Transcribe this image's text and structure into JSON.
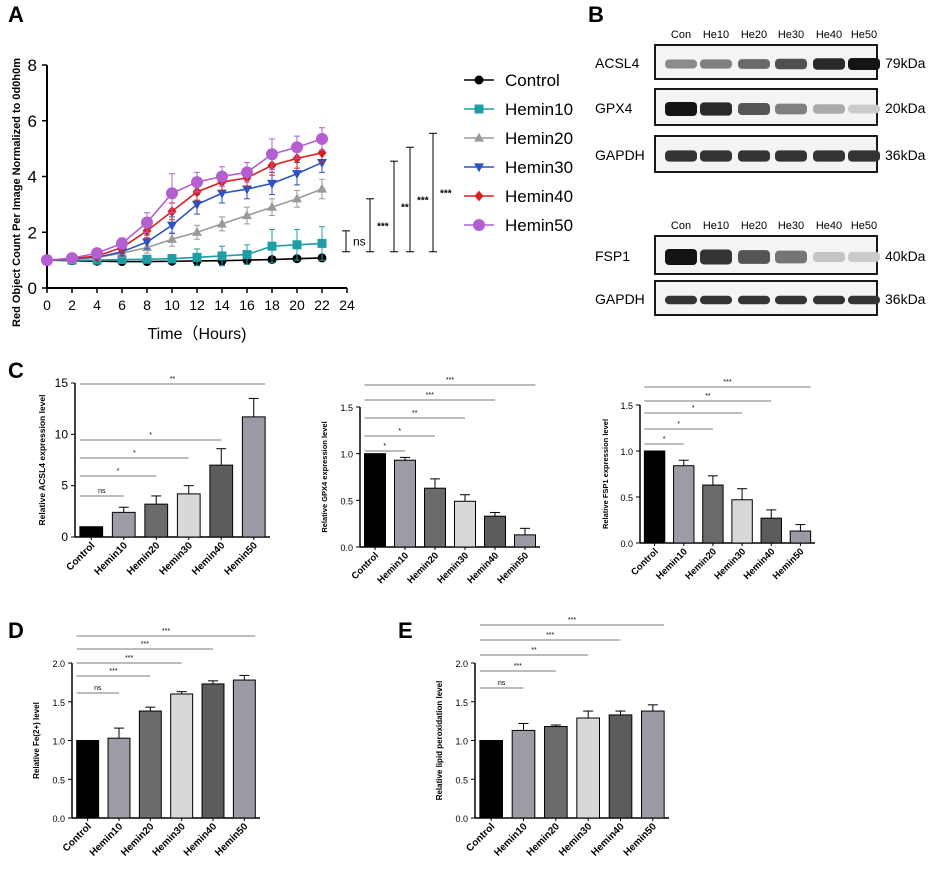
{
  "colors": {
    "control": "#000000",
    "hemin10": "#1f9da4",
    "hemin20": "#9a9a9a",
    "hemin30": "#2a52c3",
    "hemin40": "#d8201f",
    "hemin50": "#b35fcf",
    "bar_shades": [
      "#000000",
      "#9c9ca6",
      "#6b6b6b",
      "#d8d8d8",
      "#5c5c5c",
      "#9a9aa6"
    ]
  },
  "panels": {
    "A": {
      "letter": "A"
    },
    "B": {
      "letter": "B"
    },
    "C": {
      "letter": "C"
    },
    "D": {
      "letter": "D"
    },
    "E": {
      "letter": "E"
    }
  },
  "chart_data": [
    {
      "id": "A",
      "type": "line",
      "title": "",
      "xlabel": "Time（Hours)",
      "ylabel": "Red Object Count Per Image Normalized to 0d0h0m",
      "xlim": [
        0,
        24
      ],
      "ylim": [
        0,
        8
      ],
      "xticks": [
        "0",
        "2",
        "4",
        "6",
        "8",
        "10",
        "12",
        "14",
        "16",
        "18",
        "20",
        "22",
        "24"
      ],
      "yticks": [
        "0",
        "2",
        "4",
        "6",
        "8"
      ],
      "x": [
        0,
        2,
        4,
        6,
        8,
        10,
        12,
        14,
        16,
        18,
        20,
        22
      ],
      "series": [
        {
          "name": "Control",
          "marker": "circle",
          "color": "#000000",
          "values": [
            1.0,
            0.98,
            0.96,
            0.95,
            0.95,
            0.96,
            0.97,
            0.98,
            1.0,
            1.02,
            1.05,
            1.08
          ],
          "errors": [
            0.05,
            0.08,
            0.08,
            0.1,
            0.1,
            0.1,
            0.15,
            0.15,
            0.15,
            0.1,
            0.1,
            0.1
          ]
        },
        {
          "name": "Hemin10",
          "marker": "square",
          "color": "#1f9da4",
          "values": [
            1.0,
            1.0,
            1.0,
            1.02,
            1.03,
            1.05,
            1.1,
            1.15,
            1.2,
            1.5,
            1.55,
            1.6
          ],
          "errors": [
            0.05,
            0.08,
            0.1,
            0.1,
            0.1,
            0.15,
            0.3,
            0.35,
            0.35,
            0.6,
            0.55,
            0.6
          ]
        },
        {
          "name": "Hemin20",
          "marker": "triangle-up",
          "color": "#9a9a9a",
          "values": [
            1.0,
            1.05,
            1.1,
            1.25,
            1.45,
            1.75,
            2.0,
            2.3,
            2.6,
            2.9,
            3.2,
            3.55
          ],
          "errors": [
            0.05,
            0.1,
            0.1,
            0.15,
            0.2,
            0.25,
            0.25,
            0.25,
            0.3,
            0.3,
            0.3,
            0.35
          ]
        },
        {
          "name": "Hemin30",
          "marker": "triangle-down",
          "color": "#2a52c3",
          "values": [
            1.0,
            1.05,
            1.1,
            1.3,
            1.65,
            2.25,
            3.0,
            3.4,
            3.55,
            3.75,
            4.1,
            4.5
          ],
          "errors": [
            0.05,
            0.1,
            0.1,
            0.15,
            0.25,
            0.3,
            0.35,
            0.35,
            0.35,
            0.4,
            0.4,
            0.35
          ]
        },
        {
          "name": "Hemin40",
          "marker": "diamond",
          "color": "#d8201f",
          "values": [
            1.0,
            1.05,
            1.15,
            1.45,
            2.05,
            2.75,
            3.45,
            3.8,
            3.95,
            4.4,
            4.65,
            4.85
          ],
          "errors": [
            0.05,
            0.1,
            0.1,
            0.2,
            0.25,
            0.3,
            0.3,
            0.3,
            0.3,
            0.35,
            0.35,
            0.35
          ]
        },
        {
          "name": "Hemin50",
          "marker": "circle",
          "color": "#b35fcf",
          "values": [
            1.0,
            1.07,
            1.25,
            1.6,
            2.35,
            3.4,
            3.8,
            4.0,
            4.15,
            4.8,
            5.05,
            5.35
          ],
          "errors": [
            0.05,
            0.1,
            0.12,
            0.2,
            0.35,
            0.7,
            0.35,
            0.35,
            0.35,
            0.55,
            0.4,
            0.4
          ]
        }
      ],
      "significance": [
        {
          "label": "ns",
          "from": 1.3,
          "to": 2.05
        },
        {
          "label": "***",
          "from": 1.3,
          "to": 3.2
        },
        {
          "label": "**",
          "from": 1.3,
          "to": 4.55
        },
        {
          "label": "***",
          "from": 1.3,
          "to": 5.05
        },
        {
          "label": "***",
          "from": 1.3,
          "to": 5.55
        }
      ]
    },
    {
      "id": "B",
      "type": "western-blot",
      "blot1": {
        "lanes": [
          "Con",
          "He10",
          "He20",
          "He30",
          "He40",
          "He50"
        ],
        "rows": [
          {
            "protein": "ACSL4",
            "size": "79kDa",
            "intensity": [
              0.45,
              0.5,
              0.6,
              0.72,
              0.9,
              1.0
            ]
          },
          {
            "protein": "GPX4",
            "size": "20kDa",
            "intensity": [
              1.0,
              0.9,
              0.7,
              0.5,
              0.3,
              0.15
            ]
          },
          {
            "protein": "GAPDH",
            "size": "36kDa",
            "intensity": [
              0.85,
              0.85,
              0.85,
              0.85,
              0.85,
              0.85
            ]
          }
        ]
      },
      "blot2": {
        "lanes": [
          "Con",
          "He10",
          "He20",
          "He30",
          "He40",
          "He50"
        ],
        "rows": [
          {
            "protein": "FSP1",
            "size": "40kDa",
            "intensity": [
              1.0,
              0.85,
              0.7,
              0.55,
              0.18,
              0.15
            ]
          },
          {
            "protein": "GAPDH",
            "size": "36kDa",
            "intensity": [
              0.85,
              0.85,
              0.85,
              0.85,
              0.85,
              0.85
            ]
          }
        ]
      }
    },
    {
      "id": "C1",
      "type": "bar",
      "categories": [
        "Control",
        "Hemin10",
        "Hemin20",
        "Hemin30",
        "Hemin40",
        "Hemin50"
      ],
      "values": [
        1.0,
        2.4,
        3.2,
        4.2,
        7.0,
        11.7
      ],
      "errors": [
        0.0,
        0.5,
        0.8,
        0.8,
        1.6,
        1.8
      ],
      "ylabel": "Relative ACSL4 expression level",
      "ylim": [
        0,
        15
      ],
      "yticks": [
        "0",
        "5",
        "10",
        "15"
      ],
      "significance": [
        {
          "label": "ns",
          "to": 1
        },
        {
          "label": "*",
          "to": 2
        },
        {
          "label": "*",
          "to": 3
        },
        {
          "label": "*",
          "to": 4
        },
        {
          "label": "**",
          "to": 5
        }
      ]
    },
    {
      "id": "C2",
      "type": "bar",
      "categories": [
        "Control",
        "Hemin10",
        "Hemin20",
        "Hemin30",
        "Hemin40",
        "Hemin50"
      ],
      "values": [
        1.0,
        0.93,
        0.63,
        0.49,
        0.33,
        0.13
      ],
      "errors": [
        0.0,
        0.03,
        0.1,
        0.07,
        0.04,
        0.07
      ],
      "ylabel": "Relative GPX4 expression level",
      "ylim": [
        0,
        1.5
      ],
      "yticks": [
        "0.0",
        "0.5",
        "1.0",
        "1.5"
      ],
      "significance": [
        {
          "label": "*",
          "to": 1
        },
        {
          "label": "*",
          "to": 2
        },
        {
          "label": "**",
          "to": 3
        },
        {
          "label": "***",
          "to": 4
        },
        {
          "label": "***",
          "to": 5
        }
      ]
    },
    {
      "id": "C3",
      "type": "bar",
      "categories": [
        "Control",
        "Hemin10",
        "Hemin20",
        "Hemin30",
        "Hemin40",
        "Hemin50"
      ],
      "values": [
        1.0,
        0.84,
        0.63,
        0.47,
        0.27,
        0.13
      ],
      "errors": [
        0.0,
        0.06,
        0.1,
        0.12,
        0.09,
        0.07
      ],
      "ylabel": "Relative FSP1 expression level",
      "ylim": [
        0,
        1.5
      ],
      "yticks": [
        "0.0",
        "0.5",
        "1.0",
        "1.5"
      ],
      "significance": [
        {
          "label": "*",
          "to": 1
        },
        {
          "label": "*",
          "to": 2
        },
        {
          "label": "*",
          "to": 3
        },
        {
          "label": "**",
          "to": 4
        },
        {
          "label": "***",
          "to": 5
        }
      ]
    },
    {
      "id": "D",
      "type": "bar",
      "categories": [
        "Control",
        "Hemin10",
        "Hemin20",
        "Hemin30",
        "Hemin40",
        "Hemin50"
      ],
      "values": [
        1.0,
        1.03,
        1.38,
        1.6,
        1.73,
        1.78
      ],
      "errors": [
        0.0,
        0.13,
        0.05,
        0.03,
        0.04,
        0.06
      ],
      "ylabel": "Relative Fe(2+) level",
      "ylim": [
        0,
        2.0
      ],
      "yticks": [
        "0.0",
        "0.5",
        "1.0",
        "1.5",
        "2.0"
      ],
      "significance": [
        {
          "label": "ns",
          "to": 1
        },
        {
          "label": "***",
          "to": 2
        },
        {
          "label": "***",
          "to": 3
        },
        {
          "label": "***",
          "to": 4
        },
        {
          "label": "***",
          "to": 5
        }
      ]
    },
    {
      "id": "E",
      "type": "bar",
      "categories": [
        "Control",
        "Hemin10",
        "Hemin20",
        "Hemin30",
        "Hemin40",
        "Hemin50"
      ],
      "values": [
        1.0,
        1.13,
        1.18,
        1.29,
        1.33,
        1.38
      ],
      "errors": [
        0.0,
        0.09,
        0.02,
        0.09,
        0.05,
        0.08
      ],
      "ylabel": "Relative lipid peroxidation level",
      "ylim": [
        0,
        2.0
      ],
      "yticks": [
        "0.0",
        "0.5",
        "1.0",
        "1.5",
        "2.0"
      ],
      "significance": [
        {
          "label": "ns",
          "to": 1
        },
        {
          "label": "***",
          "to": 2
        },
        {
          "label": "**",
          "to": 3
        },
        {
          "label": "***",
          "to": 4
        },
        {
          "label": "***",
          "to": 5
        }
      ]
    }
  ]
}
